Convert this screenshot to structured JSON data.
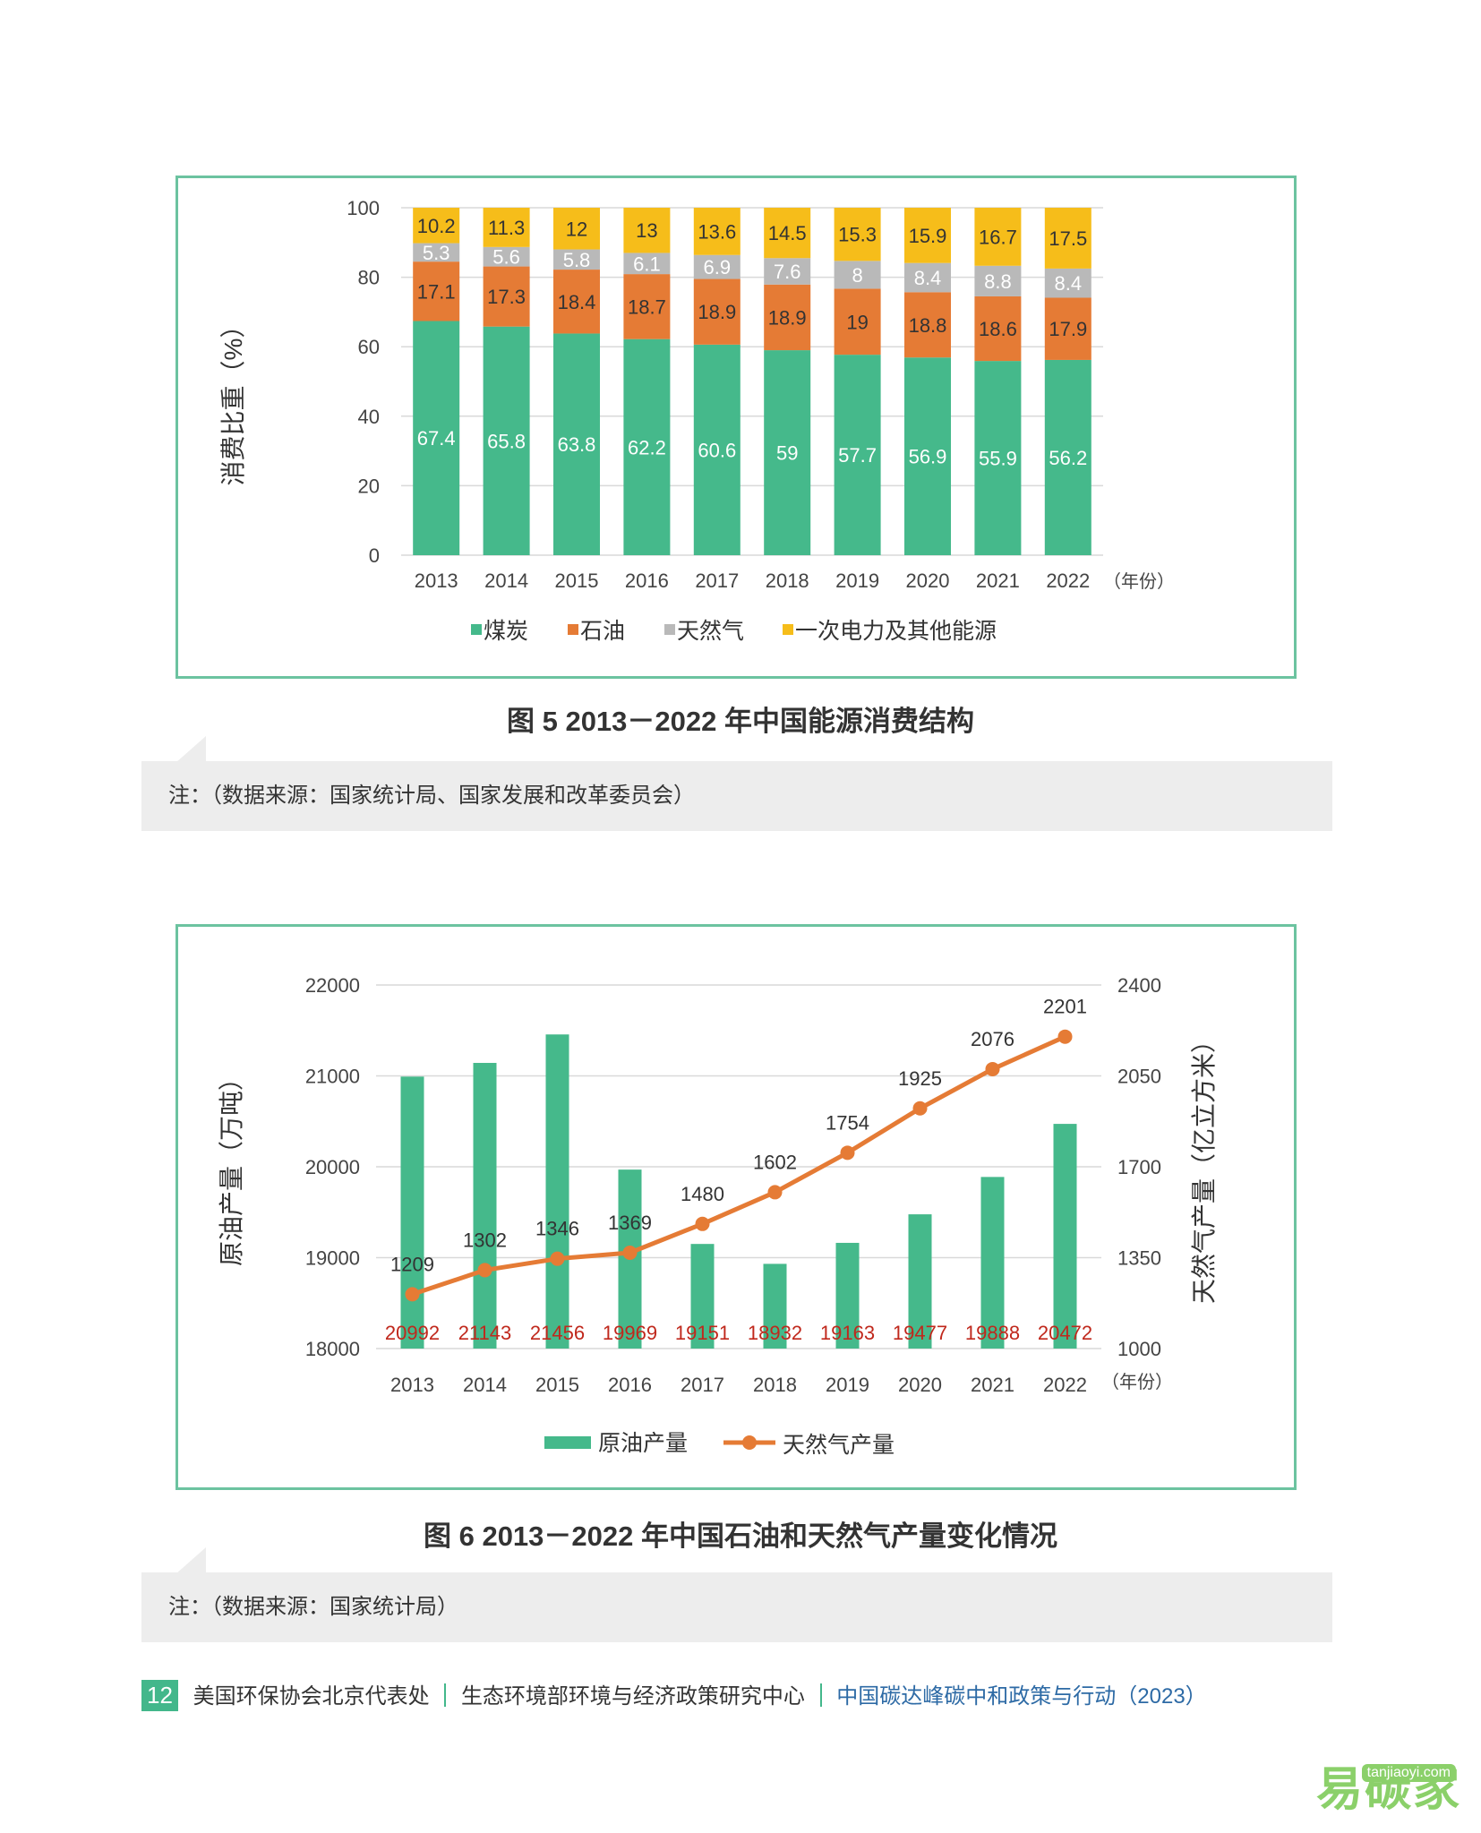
{
  "chart_data": [
    {
      "type": "bar",
      "stacked": true,
      "title": "图 5   2013－2022 年中国能源消费结构",
      "ylabel": "消费比重（%）",
      "xlabel": "（年份）",
      "ylim": [
        0,
        100
      ],
      "yticks": [
        "0",
        "20",
        "40",
        "60",
        "80",
        "100"
      ],
      "categories": [
        "2013",
        "2014",
        "2015",
        "2016",
        "2017",
        "2018",
        "2019",
        "2020",
        "2021",
        "2022"
      ],
      "series": [
        {
          "name": "煤炭",
          "color": "#45b98b",
          "values": [
            67.4,
            65.8,
            63.8,
            62.2,
            60.6,
            59,
            57.7,
            56.9,
            55.9,
            56.2
          ],
          "labels": [
            "67.4",
            "65.8",
            "63.8",
            "62.2",
            "60.6",
            "59",
            "57.7",
            "56.9",
            "55.9",
            "56.2"
          ]
        },
        {
          "name": "石油",
          "color": "#e57b35",
          "values": [
            17.1,
            17.3,
            18.4,
            18.7,
            18.9,
            18.9,
            19,
            18.8,
            18.6,
            17.9
          ],
          "labels": [
            "17.1",
            "17.3",
            "18.4",
            "18.7",
            "18.9",
            "18.9",
            "19",
            "18.8",
            "18.6",
            "17.9"
          ]
        },
        {
          "name": "天然气",
          "color": "#b9b9b9",
          "values": [
            5.3,
            5.6,
            5.8,
            6.1,
            6.9,
            7.6,
            8,
            8.4,
            8.8,
            8.4
          ],
          "labels": [
            "5.3",
            "5.6",
            "5.8",
            "6.1",
            "6.9",
            "7.6",
            "8",
            "8.4",
            "8.8",
            "8.4"
          ]
        },
        {
          "name": "一次电力及其他能源",
          "color": "#f6bd1a",
          "values": [
            10.2,
            11.3,
            12,
            13,
            13.6,
            14.5,
            15.3,
            15.9,
            16.7,
            17.5
          ],
          "labels": [
            "10.2",
            "11.3",
            "12",
            "13",
            "13.6",
            "14.5",
            "15.3",
            "15.9",
            "16.7",
            "17.5"
          ]
        }
      ],
      "legend": "bottom"
    },
    {
      "type": "bar+line",
      "title": "图 6   2013－2022 年中国石油和天然气产量变化情况",
      "ylabel": "原油产量（万吨）",
      "y2label": "天然气产量（亿立方米）",
      "xlabel": "（年份）",
      "ylim": [
        18000,
        22000
      ],
      "y2lim": [
        1000,
        2400
      ],
      "yticks": [
        "18000",
        "19000",
        "20000",
        "21000",
        "22000"
      ],
      "y2ticks": [
        "1000",
        "1350",
        "1700",
        "2050",
        "2400"
      ],
      "categories": [
        "2013",
        "2014",
        "2015",
        "2016",
        "2017",
        "2018",
        "2019",
        "2020",
        "2021",
        "2022"
      ],
      "series": [
        {
          "name": "原油产量",
          "type": "bar",
          "axis": "left",
          "color": "#45b98b",
          "values": [
            20992,
            21143,
            21456,
            19969,
            19151,
            18932,
            19163,
            19477,
            19888,
            20472
          ],
          "labels": [
            "20992",
            "21143",
            "21456",
            "19969",
            "19151",
            "18932",
            "19163",
            "19477",
            "19888",
            "20472"
          ],
          "label_color": "#c0281c"
        },
        {
          "name": "天然气产量",
          "type": "line",
          "axis": "right",
          "color": "#e57b35",
          "values": [
            1209,
            1302,
            1346,
            1369,
            1480,
            1602,
            1754,
            1925,
            2076,
            2201
          ],
          "labels": [
            "1209",
            "1302",
            "1346",
            "1369",
            "1480",
            "1602",
            "1754",
            "1925",
            "2076",
            "2201"
          ]
        }
      ],
      "legend": "bottom"
    }
  ],
  "fig1": {
    "caption": "图 5   2013－2022 年中国能源消费结构",
    "note": "注：（数据来源：国家统计局、国家发展和改革委员会）"
  },
  "fig2": {
    "caption": "图 6   2013－2022 年中国石油和天然气产量变化情况",
    "note": "注：（数据来源：国家统计局）"
  },
  "footer": {
    "page_number": "12",
    "org1": "美国环保协会北京代表处",
    "org2": "生态环境部环境与经济政策研究中心",
    "report": "中国碳达峰碳中和政策与行动（2023）"
  },
  "watermark": {
    "brand": "易碳家",
    "site": "tanjiaoyi.com"
  }
}
